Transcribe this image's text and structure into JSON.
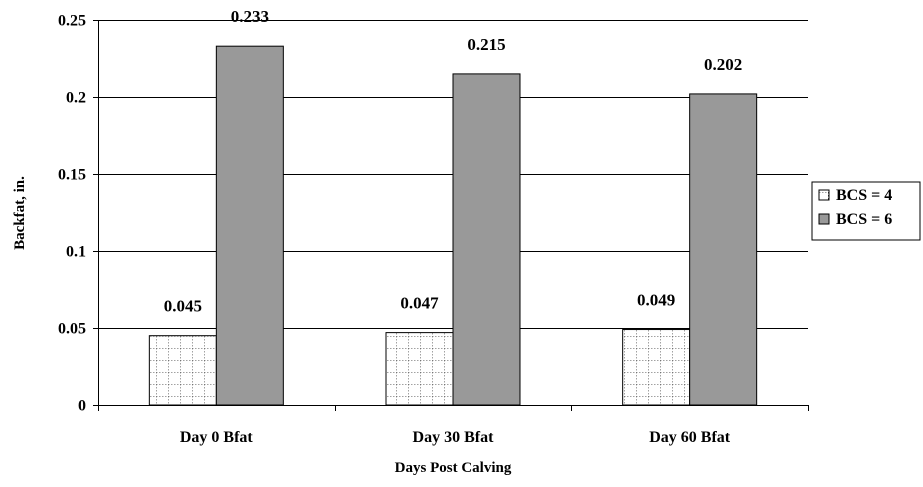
{
  "chart_data": {
    "type": "bar",
    "title": "",
    "xlabel": "Days Post Calving",
    "ylabel": "Backfat, in.",
    "categories": [
      "Day 0 Bfat",
      "Day 30 Bfat",
      "Day 60 Bfat"
    ],
    "series": [
      {
        "name": "BCS = 4",
        "values": [
          0.045,
          0.047,
          0.049
        ],
        "data_labels": [
          "0.045",
          "0.047",
          "0.049"
        ],
        "fill": "#ffffff",
        "pattern": "grid"
      },
      {
        "name": "BCS = 6",
        "values": [
          0.233,
          0.215,
          0.202
        ],
        "data_labels": [
          "0.233",
          "0.215",
          "0.202"
        ],
        "fill": "#999999",
        "pattern": "solid"
      }
    ],
    "ylim": [
      0,
      0.25
    ],
    "yticks": [
      0,
      0.05,
      0.1,
      0.15,
      0.2,
      0.25
    ],
    "ytick_labels": [
      "0",
      "0.05",
      "0.1",
      "0.15",
      "0.2",
      "0.25"
    ],
    "grid": true,
    "legend_position": "right"
  }
}
